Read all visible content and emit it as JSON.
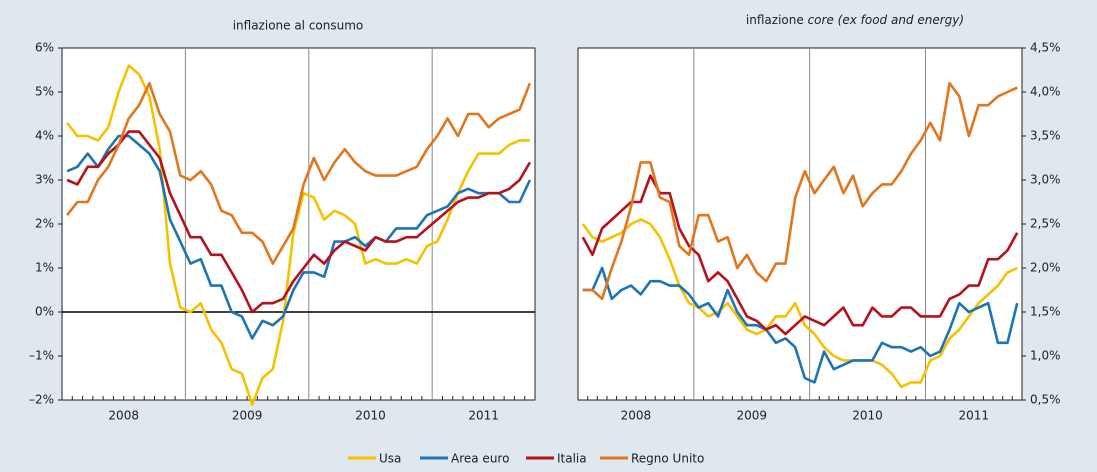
{
  "chart_data": [
    {
      "type": "line",
      "title": "inflazione al consumo",
      "yaxis_side": "left",
      "categories": [
        null,
        null,
        null,
        null,
        null,
        null,
        "2008",
        null,
        null,
        null,
        null,
        null,
        null,
        null,
        null,
        null,
        null,
        null,
        "2009",
        null,
        null,
        null,
        null,
        null,
        null,
        null,
        null,
        null,
        null,
        null,
        "2010",
        null,
        null,
        null,
        null,
        null,
        null,
        null,
        null,
        null,
        null,
        "2011",
        null,
        null,
        null,
        null
      ],
      "ylim": [
        -2,
        6
      ],
      "yticks": [
        {
          "value": 6,
          "label": "6%"
        },
        {
          "value": 5,
          "label": "5%"
        },
        {
          "value": 4,
          "label": "4%"
        },
        {
          "value": 3,
          "label": "3%"
        },
        {
          "value": 2,
          "label": "2%"
        },
        {
          "value": 1,
          "label": "1%"
        },
        {
          "value": 0,
          "label": "0%"
        },
        {
          "value": -1,
          "label": "–1%"
        },
        {
          "value": -2,
          "label": "–2%"
        }
      ],
      "series": [
        {
          "name": "Usa",
          "color": "#f5c100",
          "values": [
            4.3,
            4.0,
            4.0,
            3.9,
            4.2,
            5.0,
            5.6,
            5.4,
            4.9,
            3.7,
            1.1,
            0.1,
            0.0,
            0.2,
            -0.4,
            -0.7,
            -1.3,
            -1.4,
            -2.1,
            -1.5,
            -1.3,
            -0.2,
            1.8,
            2.7,
            2.6,
            2.1,
            2.3,
            2.2,
            2.0,
            1.1,
            1.2,
            1.1,
            1.1,
            1.2,
            1.1,
            1.5,
            1.6,
            2.1,
            2.7,
            3.2,
            3.6,
            3.6,
            3.6,
            3.8,
            3.9,
            3.9
          ]
        },
        {
          "name": "Area euro",
          "color": "#1f74b6",
          "values": [
            3.2,
            3.3,
            3.6,
            3.3,
            3.7,
            4.0,
            4.0,
            3.8,
            3.6,
            3.2,
            2.1,
            1.6,
            1.1,
            1.2,
            0.6,
            0.6,
            0.0,
            -0.1,
            -0.6,
            -0.2,
            -0.3,
            -0.1,
            0.5,
            0.9,
            0.9,
            0.8,
            1.6,
            1.6,
            1.7,
            1.5,
            1.7,
            1.6,
            1.9,
            1.9,
            1.9,
            2.2,
            2.3,
            2.4,
            2.7,
            2.8,
            2.7,
            2.7,
            2.7,
            2.5,
            2.5,
            3.0
          ]
        },
        {
          "name": "Italia",
          "color": "#b5121b",
          "values": [
            3.0,
            2.9,
            3.3,
            3.3,
            3.6,
            3.8,
            4.1,
            4.1,
            3.8,
            3.5,
            2.7,
            2.2,
            1.7,
            1.7,
            1.3,
            1.3,
            0.9,
            0.5,
            0.0,
            0.2,
            0.2,
            0.3,
            0.7,
            1.0,
            1.3,
            1.1,
            1.4,
            1.6,
            1.5,
            1.4,
            1.7,
            1.6,
            1.6,
            1.7,
            1.7,
            1.9,
            2.1,
            2.3,
            2.5,
            2.6,
            2.6,
            2.7,
            2.7,
            2.8,
            3.0,
            3.4
          ]
        },
        {
          "name": "Regno Unito",
          "color": "#e2761f",
          "values": [
            2.2,
            2.5,
            2.5,
            3.0,
            3.3,
            3.8,
            4.4,
            4.7,
            5.2,
            4.5,
            4.1,
            3.1,
            3.0,
            3.2,
            2.9,
            2.3,
            2.2,
            1.8,
            1.8,
            1.6,
            1.1,
            1.5,
            1.9,
            2.9,
            3.5,
            3.0,
            3.4,
            3.7,
            3.4,
            3.2,
            3.1,
            3.1,
            3.1,
            3.2,
            3.3,
            3.7,
            4.0,
            4.4,
            4.0,
            4.5,
            4.5,
            4.2,
            4.4,
            4.5,
            4.6,
            5.2
          ]
        }
      ]
    },
    {
      "type": "line",
      "title": "inflazione",
      "subtitle": "core (ex food and energy)",
      "yaxis_side": "right",
      "categories": [
        null,
        null,
        null,
        null,
        null,
        null,
        "2008",
        null,
        null,
        null,
        null,
        null,
        null,
        null,
        null,
        null,
        null,
        null,
        "2009",
        null,
        null,
        null,
        null,
        null,
        null,
        null,
        null,
        null,
        null,
        null,
        "2010",
        null,
        null,
        null,
        null,
        null,
        null,
        null,
        null,
        null,
        null,
        "2011",
        null,
        null,
        null,
        null
      ],
      "ylim": [
        0.5,
        4.5
      ],
      "yticks": [
        {
          "value": 4.5,
          "label": "4,5%"
        },
        {
          "value": 4.0,
          "label": "4,0%"
        },
        {
          "value": 3.5,
          "label": "3,5%"
        },
        {
          "value": 3.0,
          "label": "3,0%"
        },
        {
          "value": 2.5,
          "label": "2,5%"
        },
        {
          "value": 2.0,
          "label": "2,0%"
        },
        {
          "value": 1.5,
          "label": "1,5%"
        },
        {
          "value": 1.0,
          "label": "1,0%"
        },
        {
          "value": 0.5,
          "label": "0,5%"
        }
      ],
      "series": [
        {
          "name": "Usa",
          "color": "#f5c100",
          "values": [
            2.5,
            2.35,
            2.3,
            2.35,
            2.4,
            2.5,
            2.55,
            2.5,
            2.35,
            2.1,
            1.8,
            1.6,
            1.55,
            1.45,
            1.5,
            1.6,
            1.45,
            1.3,
            1.25,
            1.3,
            1.45,
            1.45,
            1.6,
            1.35,
            1.25,
            1.1,
            1.0,
            0.95,
            0.95,
            0.95,
            0.95,
            0.9,
            0.8,
            0.65,
            0.7,
            0.7,
            0.95,
            1.0,
            1.2,
            1.3,
            1.45,
            1.6,
            1.7,
            1.8,
            1.95,
            2.0
          ]
        },
        {
          "name": "Area euro",
          "color": "#1f74b6",
          "values": [
            1.75,
            1.75,
            2.0,
            1.65,
            1.75,
            1.8,
            1.7,
            1.85,
            1.85,
            1.8,
            1.8,
            1.7,
            1.55,
            1.6,
            1.45,
            1.75,
            1.5,
            1.35,
            1.35,
            1.3,
            1.15,
            1.2,
            1.1,
            0.75,
            0.7,
            1.05,
            0.85,
            0.9,
            0.95,
            0.95,
            0.95,
            1.15,
            1.1,
            1.1,
            1.05,
            1.1,
            1.0,
            1.05,
            1.3,
            1.6,
            1.5,
            1.55,
            1.6,
            1.15,
            1.15,
            1.6
          ]
        },
        {
          "name": "Italia",
          "color": "#b5121b",
          "values": [
            2.35,
            2.15,
            2.45,
            2.55,
            2.65,
            2.75,
            2.75,
            3.05,
            2.85,
            2.85,
            2.45,
            2.25,
            2.15,
            1.85,
            1.95,
            1.85,
            1.65,
            1.45,
            1.4,
            1.3,
            1.35,
            1.25,
            1.35,
            1.45,
            1.4,
            1.35,
            1.45,
            1.55,
            1.35,
            1.35,
            1.55,
            1.45,
            1.45,
            1.55,
            1.55,
            1.45,
            1.45,
            1.45,
            1.65,
            1.7,
            1.8,
            1.8,
            2.1,
            2.1,
            2.2,
            2.4
          ]
        },
        {
          "name": "Regno Unito",
          "color": "#e2761f",
          "values": [
            1.75,
            1.75,
            1.65,
            2.0,
            2.3,
            2.7,
            3.2,
            3.2,
            2.8,
            2.75,
            2.25,
            2.15,
            2.6,
            2.6,
            2.3,
            2.35,
            2.0,
            2.15,
            1.95,
            1.85,
            2.05,
            2.05,
            2.8,
            3.1,
            2.85,
            3.0,
            3.15,
            2.85,
            3.05,
            2.7,
            2.85,
            2.95,
            2.95,
            3.1,
            3.3,
            3.45,
            3.65,
            3.45,
            4.1,
            3.95,
            3.5,
            3.85,
            3.85,
            3.95,
            4.0,
            4.05
          ]
        }
      ]
    }
  ]
}
